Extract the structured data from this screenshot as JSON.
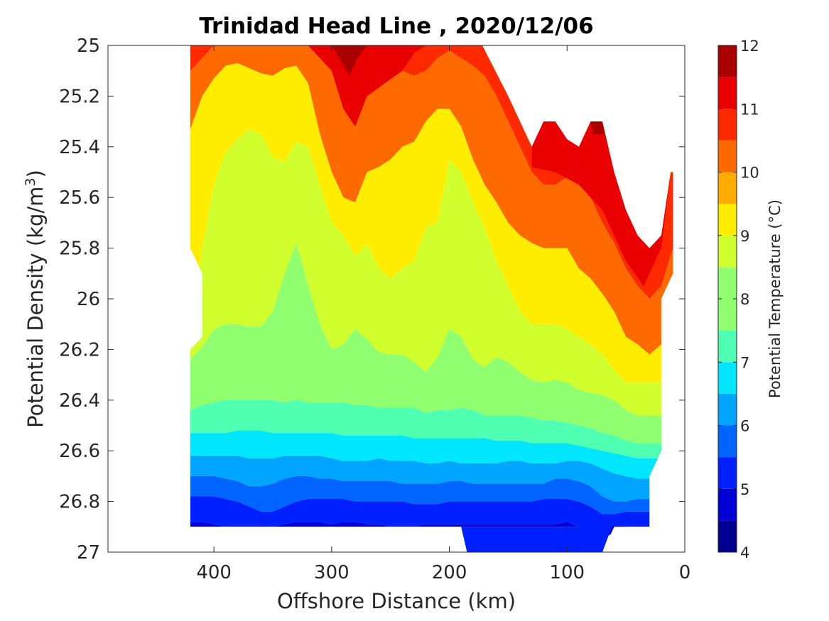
{
  "chart_data": {
    "type": "contourf",
    "title": "Trinidad Head Line , 2020/12/06",
    "xlabel": "Offshore Distance (km)",
    "ylabel": "Potential Density (kg/m",
    "ylabel_superscript": "3",
    "ylabel_suffix": ")",
    "xlim": [
      490,
      0
    ],
    "x_reversed": true,
    "ylim": [
      25,
      27
    ],
    "y_reversed": true,
    "x_ticks": [
      400,
      300,
      200,
      100,
      0
    ],
    "x_tick_labels": [
      "400",
      "300",
      "200",
      "100",
      "0"
    ],
    "y_ticks": [
      25,
      25.2,
      25.4,
      25.6,
      25.8,
      26,
      26.2,
      26.4,
      26.6,
      26.8,
      27
    ],
    "y_tick_labels": [
      "25",
      "25.2",
      "25.4",
      "25.6",
      "25.8",
      "26",
      "26.2",
      "26.4",
      "26.6",
      "26.8",
      "27"
    ],
    "colorbar": {
      "label": "Potential Temperature (°C)",
      "range": [
        4,
        12
      ],
      "ticks": [
        4,
        5,
        6,
        7,
        8,
        9,
        10,
        11,
        12
      ],
      "tick_labels": [
        "4",
        "5",
        "6",
        "7",
        "8",
        "9",
        "10",
        "11",
        "12"
      ],
      "level_step": 0.5,
      "colormap": "jet",
      "colors": [
        "#00008f",
        "#0000d7",
        "#0020ff",
        "#0064ff",
        "#00a5ff",
        "#00e6ff",
        "#4effb1",
        "#8fff70",
        "#d1ff2e",
        "#ffed00",
        "#ffab00",
        "#ff6a00",
        "#ff2900",
        "#ea0000",
        "#aa0000"
      ]
    },
    "sections": {
      "x": [
        420,
        410,
        400,
        390,
        380,
        370,
        360,
        350,
        340,
        330,
        320,
        310,
        300,
        290,
        280,
        270,
        260,
        250,
        240,
        230,
        220,
        210,
        200,
        190,
        180,
        170,
        160,
        150,
        140,
        130,
        120,
        110,
        100,
        90,
        80,
        70,
        60,
        50,
        40,
        30,
        20,
        10
      ],
      "isopycnal_rows": [
        {
          "temperature": 10.0,
          "density": [
            25.1,
            25.05,
            25.0,
            25.0,
            25.0,
            25.0,
            25.0,
            25.0,
            25.0,
            25.0,
            25.0,
            25.02,
            25.03,
            25.05,
            25.08,
            25.1,
            25.08,
            25.05,
            25.1,
            25.12,
            25.1,
            25.05,
            25.02,
            25.05,
            25.08,
            25.12,
            25.2,
            25.3,
            25.4,
            25.5,
            25.55,
            25.55,
            25.52,
            25.55,
            25.6,
            25.7,
            25.78,
            25.88,
            25.95,
            26.0,
            25.95,
            25.8
          ]
        },
        {
          "temperature": 9.0,
          "density": [
            25.33,
            25.2,
            25.13,
            25.08,
            25.07,
            25.09,
            25.11,
            25.12,
            25.09,
            25.08,
            25.15,
            25.35,
            25.5,
            25.6,
            25.62,
            25.5,
            25.48,
            25.45,
            25.4,
            25.38,
            25.3,
            25.25,
            25.25,
            25.32,
            25.45,
            25.55,
            25.62,
            25.7,
            25.75,
            25.78,
            25.8,
            25.8,
            25.8,
            25.88,
            25.92,
            25.98,
            26.05,
            26.15,
            26.18,
            26.22,
            26.18,
            26.0
          ]
        },
        {
          "temperature": 8.5,
          "density": [
            26.2,
            25.8,
            25.55,
            25.42,
            25.37,
            25.33,
            25.35,
            25.44,
            25.46,
            25.38,
            25.4,
            25.55,
            25.7,
            25.75,
            25.83,
            25.78,
            25.88,
            25.92,
            25.88,
            25.85,
            25.72,
            25.7,
            25.45,
            25.5,
            25.62,
            25.72,
            25.85,
            25.95,
            26.05,
            26.1,
            26.1,
            26.1,
            26.12,
            26.15,
            26.18,
            26.22,
            26.28,
            26.33,
            26.33,
            26.33,
            26.33,
            26.3
          ]
        },
        {
          "temperature": 8.0,
          "density": [
            26.24,
            26.19,
            26.12,
            26.1,
            26.1,
            26.11,
            26.11,
            26.05,
            25.9,
            25.78,
            25.95,
            26.1,
            26.2,
            26.18,
            26.12,
            26.16,
            26.21,
            26.22,
            26.22,
            26.25,
            26.29,
            26.23,
            26.12,
            26.15,
            26.24,
            26.27,
            26.23,
            26.25,
            26.29,
            26.32,
            26.33,
            26.32,
            26.33,
            26.36,
            26.37,
            26.38,
            26.4,
            26.44,
            26.46,
            26.46,
            26.46,
            26.44
          ]
        },
        {
          "temperature": 7.5,
          "density": [
            26.44,
            26.42,
            26.41,
            26.4,
            26.4,
            26.4,
            26.4,
            26.4,
            26.41,
            26.4,
            26.41,
            26.41,
            26.41,
            26.41,
            26.42,
            26.42,
            26.43,
            26.43,
            26.43,
            26.43,
            26.45,
            26.44,
            26.44,
            26.43,
            26.44,
            26.46,
            26.46,
            26.46,
            26.46,
            26.47,
            26.48,
            26.48,
            26.49,
            26.5,
            26.51,
            26.53,
            26.54,
            26.56,
            26.57,
            26.57,
            26.57,
            26.57
          ]
        },
        {
          "temperature": 7.0,
          "density": [
            26.53,
            26.53,
            26.53,
            26.53,
            26.52,
            26.52,
            26.52,
            26.53,
            26.53,
            26.53,
            26.53,
            26.53,
            26.53,
            26.54,
            26.54,
            26.54,
            26.54,
            26.54,
            26.54,
            26.55,
            26.55,
            26.55,
            26.55,
            26.55,
            26.55,
            26.55,
            26.56,
            26.56,
            26.56,
            26.57,
            26.57,
            26.57,
            26.57,
            26.58,
            26.59,
            26.6,
            26.61,
            26.62,
            26.63,
            26.63,
            26.63,
            26.63
          ]
        },
        {
          "temperature": 6.5,
          "density": [
            26.62,
            26.62,
            26.62,
            26.62,
            26.62,
            26.63,
            26.63,
            26.63,
            26.62,
            26.62,
            26.62,
            26.62,
            26.63,
            26.64,
            26.64,
            26.64,
            26.63,
            26.64,
            26.64,
            26.64,
            26.65,
            26.65,
            26.64,
            26.65,
            26.65,
            26.65,
            26.65,
            26.64,
            26.64,
            26.65,
            26.65,
            26.65,
            26.64,
            26.64,
            26.65,
            26.67,
            26.69,
            26.7,
            26.71,
            26.71,
            26.71,
            26.71
          ]
        },
        {
          "temperature": 6.0,
          "density": [
            26.7,
            26.7,
            26.7,
            26.71,
            26.72,
            26.74,
            26.74,
            26.73,
            26.71,
            26.7,
            26.7,
            26.71,
            26.71,
            26.72,
            26.72,
            26.72,
            26.72,
            26.72,
            26.73,
            26.73,
            26.73,
            26.73,
            26.72,
            26.72,
            26.73,
            26.73,
            26.73,
            26.73,
            26.73,
            26.73,
            26.73,
            26.71,
            26.71,
            26.72,
            26.74,
            26.78,
            26.8,
            26.8,
            26.79,
            26.79,
            26.79,
            26.79
          ]
        },
        {
          "temperature": 5.5,
          "density": [
            26.78,
            26.78,
            26.78,
            26.79,
            26.8,
            26.82,
            26.84,
            26.84,
            26.82,
            26.8,
            26.79,
            26.79,
            26.79,
            26.79,
            26.8,
            26.8,
            26.8,
            26.8,
            26.8,
            26.81,
            26.81,
            26.81,
            26.8,
            26.8,
            26.8,
            26.8,
            26.8,
            26.8,
            26.8,
            26.8,
            26.79,
            26.79,
            26.79,
            26.8,
            26.82,
            26.85,
            26.85,
            26.84,
            26.84,
            26.84,
            26.84,
            26.84
          ]
        },
        {
          "temperature": 5.0,
          "density": [
            26.88,
            26.88,
            26.89,
            26.9,
            26.9,
            26.9,
            26.9,
            26.9,
            26.89,
            26.88,
            26.88,
            26.88,
            26.89,
            26.88,
            26.88,
            26.89,
            26.89,
            26.9,
            26.9,
            26.9,
            26.89,
            26.89,
            26.89,
            26.89,
            26.89,
            26.89,
            26.89,
            26.89,
            26.89,
            26.89,
            26.89,
            26.89,
            26.88,
            26.9,
            26.92,
            26.95,
            26.92,
            26.9,
            26.9,
            26.9,
            26.9,
            26.9
          ]
        }
      ],
      "warm_patches": [
        {
          "temperature": 10.5,
          "note": "near surface, 320-220 km and 120-20 km"
        },
        {
          "temperature": 11.0,
          "note": "near surface, 300-270 km"
        },
        {
          "temperature": 11.5,
          "note": "near surface, 80-70 km"
        }
      ]
    }
  }
}
